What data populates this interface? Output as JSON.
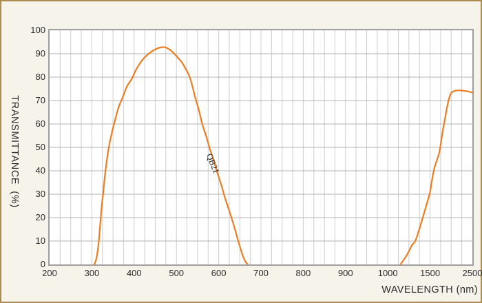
{
  "theme": {
    "background": "#f6f3ea",
    "frame_border": "#ab8c4e",
    "plot_background": "#ffffff",
    "plot_border": "#9e9e9e",
    "grid_horizontal": "#b3b3b3",
    "grid_vertical": "#cdcdcd",
    "text_color": "#2b2b2b",
    "curve_color": "#ed7d23"
  },
  "chart_data": {
    "type": "line",
    "title": "",
    "xlabel": "WAVELENGTH (nm)",
    "ylabel": "TRANSMITTANCE  (%)",
    "x_axis": {
      "unit": "nm",
      "tick_labels": [
        200,
        300,
        400,
        500,
        600,
        700,
        800,
        900,
        1000,
        1500,
        2500
      ],
      "scale": "piecewise-linear: equal width between consecutive labeled ticks, 4 minor intervals per division",
      "range_nm": [
        200,
        2500
      ]
    },
    "y_axis": {
      "unit": "%",
      "tick_labels": [
        0,
        10,
        20,
        30,
        40,
        50,
        60,
        70,
        80,
        90,
        100
      ],
      "range": [
        0,
        100
      ],
      "minor_gridlines": false
    },
    "grid": {
      "x_minor_per_division": 4,
      "y_major_step": 10
    },
    "legend": "none",
    "series": [
      {
        "name": "QB21",
        "color": "#ed7d23",
        "segments": [
          [
            [
              306,
              0
            ],
            [
              310,
              2
            ],
            [
              314,
              6
            ],
            [
              317,
              11
            ],
            [
              321,
              20
            ],
            [
              324,
              26
            ],
            [
              327,
              31
            ],
            [
              331,
              38
            ],
            [
              335,
              44
            ],
            [
              340,
              50
            ],
            [
              347,
              56
            ],
            [
              354,
              61
            ],
            [
              363,
              67
            ],
            [
              372,
              71
            ],
            [
              383,
              76
            ],
            [
              395,
              79.5
            ],
            [
              404,
              83
            ],
            [
              416,
              86.5
            ],
            [
              428,
              89
            ],
            [
              442,
              91
            ],
            [
              454,
              92.2
            ],
            [
              466,
              92.8
            ],
            [
              476,
              92.6
            ],
            [
              488,
              91.2
            ],
            [
              500,
              89
            ],
            [
              512,
              86.5
            ],
            [
              522,
              83.5
            ],
            [
              532,
              79.8
            ],
            [
              545,
              71
            ],
            [
              553,
              66
            ],
            [
              561,
              60
            ],
            [
              570,
              55
            ],
            [
              578,
              50
            ],
            [
              587,
              45
            ],
            [
              597,
              39
            ],
            [
              606,
              34
            ],
            [
              614,
              29
            ],
            [
              623,
              24
            ],
            [
              632,
              19
            ],
            [
              640,
              14
            ],
            [
              647,
              9.5
            ],
            [
              653,
              6
            ],
            [
              659,
              2.8
            ],
            [
              664,
              1
            ],
            [
              668,
              0.2
            ]
          ],
          [
            [
              1150,
              0
            ],
            [
              1190,
              2
            ],
            [
              1240,
              5
            ],
            [
              1290,
              8.5
            ],
            [
              1325,
              10
            ],
            [
              1380,
              16
            ],
            [
              1430,
              22
            ],
            [
              1470,
              27
            ],
            [
              1500,
              31
            ],
            [
              1545,
              36
            ],
            [
              1600,
              41
            ],
            [
              1650,
              44
            ],
            [
              1720,
              48
            ],
            [
              1790,
              56
            ],
            [
              1850,
              62
            ],
            [
              1900,
              67
            ],
            [
              1950,
              71
            ],
            [
              2000,
              73.2
            ],
            [
              2060,
              74
            ],
            [
              2130,
              74.3
            ],
            [
              2230,
              74.3
            ],
            [
              2330,
              74.1
            ],
            [
              2420,
              73.8
            ],
            [
              2500,
              73.4
            ]
          ]
        ]
      }
    ],
    "annotation": {
      "text": "QB21",
      "anchor_nm": 588,
      "anchor_pct": 48,
      "rotation_deg": 68
    }
  }
}
